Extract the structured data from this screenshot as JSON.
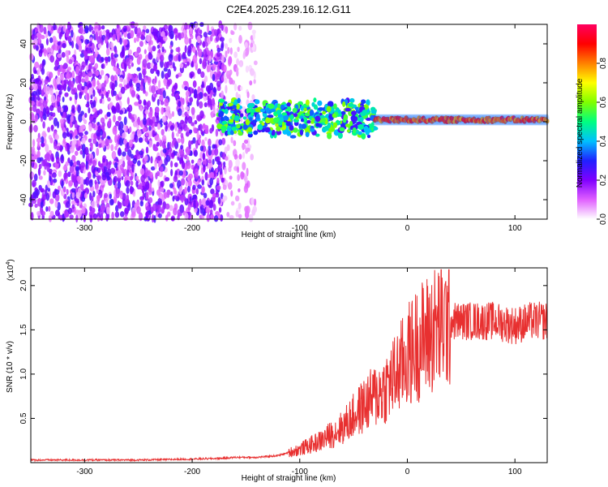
{
  "title": "C2E4.2025.239.16.12.G11",
  "chart_data": [
    {
      "type": "heatmap",
      "name": "spectrogram",
      "xlabel": "Height of straight line (km)",
      "ylabel": "Frequency (Hz)",
      "xlim": [
        -350,
        130
      ],
      "ylim": [
        -50,
        50
      ],
      "xticks": [
        -300,
        -200,
        -100,
        0,
        100
      ],
      "xtick_labels": [
        "-300",
        "-200",
        "-100",
        "0",
        "100"
      ],
      "yticks": [
        -40,
        -20,
        0,
        20,
        40
      ],
      "ytick_labels": [
        "-40",
        "-20",
        "0",
        "20",
        "40"
      ],
      "colorbar": {
        "label": "Normalized spectral amplitude",
        "range": [
          0,
          1
        ],
        "ticks": [
          0.0,
          0.2,
          0.4,
          0.6,
          0.8
        ],
        "tick_labels": [
          "0.0",
          "0.2",
          "0.4",
          "0.6",
          "0.8"
        ],
        "stops": [
          "#ffffff",
          "#e060ff",
          "#8000ff",
          "#2020ff",
          "#00c0ff",
          "#00ff80",
          "#80ff00",
          "#ffff00",
          "#ff8000",
          "#ff0000",
          "#ff0060"
        ]
      },
      "features": [
        {
          "region": "noise",
          "x_range": [
            -350,
            -170
          ],
          "freq_range": [
            -50,
            50
          ],
          "amplitude": 0.12
        },
        {
          "region": "sparse-noise",
          "x_range": [
            -170,
            -140
          ],
          "freq_range": [
            -50,
            50
          ],
          "amplitude": 0.05
        },
        {
          "region": "signal-band",
          "x_range": [
            -175,
            -30
          ],
          "freq_range": [
            -8,
            12
          ],
          "amplitude": 0.4
        },
        {
          "region": "signal-line",
          "x_range": [
            -30,
            130
          ],
          "freq_center": 1,
          "amplitude": 0.9
        }
      ]
    },
    {
      "type": "line",
      "name": "snr",
      "xlabel": "Height of straight line (km)",
      "ylabel": "SNR (10 * v/v)",
      "yscale_label": "(x10",
      "yscale_exp": "4",
      "xlim": [
        -350,
        130
      ],
      "ylim": [
        0,
        2.2
      ],
      "xticks": [
        -300,
        -200,
        -100,
        0,
        100
      ],
      "xtick_labels": [
        "-300",
        "-200",
        "-100",
        "0",
        "100"
      ],
      "yticks": [
        0.5,
        1.0,
        1.5,
        2.0
      ],
      "ytick_labels": [
        "0.5",
        "1.0",
        "1.5",
        "2.0"
      ],
      "color": "#e83030",
      "series": [
        {
          "name": "SNR",
          "x": [
            -350,
            -300,
            -250,
            -200,
            -170,
            -160,
            -140,
            -120,
            -100,
            -80,
            -60,
            -40,
            -20,
            -10,
            0,
            10,
            20,
            30,
            40,
            60,
            80,
            100,
            115,
            130
          ],
          "y": [
            0.03,
            0.03,
            0.03,
            0.04,
            0.05,
            0.06,
            0.06,
            0.08,
            0.15,
            0.25,
            0.4,
            0.65,
            0.85,
            1.0,
            1.2,
            1.35,
            1.45,
            1.55,
            1.6,
            1.6,
            1.6,
            1.55,
            1.6,
            1.6
          ]
        }
      ]
    }
  ]
}
